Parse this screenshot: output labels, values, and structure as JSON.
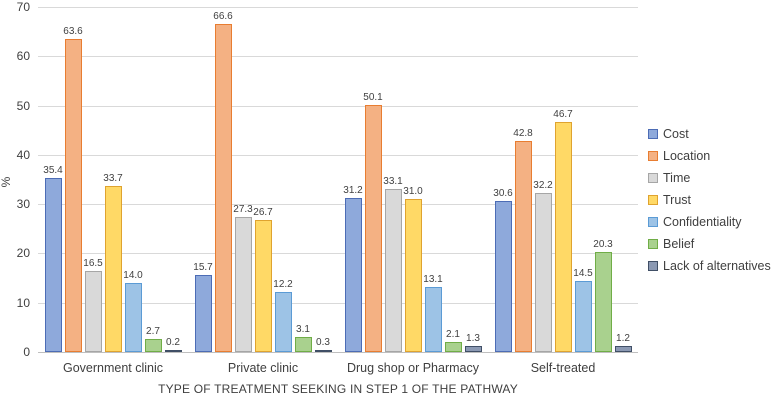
{
  "chart_data": {
    "type": "bar",
    "title": "",
    "xlabel": "TYPE OF TREATMENT SEEKING IN STEP 1 OF THE PATHWAY",
    "ylabel": "%",
    "ylim": [
      0,
      70
    ],
    "yticks": [
      0,
      10,
      20,
      30,
      40,
      50,
      60,
      70
    ],
    "grid": "horizontal",
    "legend_position": "right",
    "value_labels": "above bars, one decimal",
    "categories": [
      "Government clinic",
      "Private clinic",
      "Drug shop or Pharmacy",
      "Self-treated"
    ],
    "series": [
      {
        "name": "Cost",
        "fill": "#8EA9DB",
        "border": "#4C6CB5",
        "values": [
          35.4,
          15.7,
          31.2,
          30.6
        ]
      },
      {
        "name": "Location",
        "fill": "#F4B183",
        "border": "#E87D31",
        "values": [
          63.6,
          66.6,
          50.1,
          42.8
        ]
      },
      {
        "name": "Time",
        "fill": "#D9D9D9",
        "border": "#A6A6A6",
        "values": [
          16.5,
          27.3,
          33.1,
          32.2
        ]
      },
      {
        "name": "Trust",
        "fill": "#FFD966",
        "border": "#DFA32F",
        "values": [
          33.7,
          26.7,
          31.0,
          46.7
        ]
      },
      {
        "name": "Confidentiality",
        "fill": "#9DC3E6",
        "border": "#5B9BD5",
        "values": [
          14.0,
          12.2,
          13.1,
          14.5
        ]
      },
      {
        "name": "Belief",
        "fill": "#A9D18E",
        "border": "#70AD47",
        "values": [
          2.7,
          3.1,
          2.1,
          20.3
        ]
      },
      {
        "name": "Lack of alternatives",
        "fill": "#8B99B3",
        "border": "#404F66",
        "values": [
          0.2,
          0.3,
          1.3,
          1.2
        ]
      }
    ],
    "colors": {
      "gridline": "#D9D9D9",
      "axis_line": "#BFBFBF",
      "text": "#3F3F3F",
      "value_label_text": "#404040"
    }
  }
}
